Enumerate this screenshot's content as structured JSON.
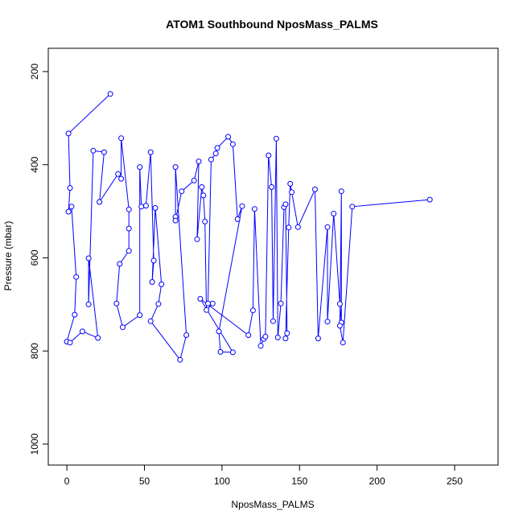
{
  "chart_data": {
    "type": "line",
    "title": "ATOM1 Southbound NposMass_PALMS",
    "xlabel": "NposMass_PALMS",
    "ylabel": "Pressure (mbar)",
    "xlim": [
      -12,
      278
    ],
    "ylim": [
      150,
      1045
    ],
    "y_reversed": true,
    "x_ticks": [
      0,
      50,
      100,
      150,
      200,
      250
    ],
    "y_ticks": [
      200,
      400,
      600,
      800,
      1000
    ],
    "grid": false,
    "legend": "none",
    "marker": "open-circle",
    "colors": {
      "series": "#0000ff",
      "axes": "#000000",
      "background": "#ffffff"
    },
    "series": [
      {
        "points": [
          [
            28,
            248
          ],
          [
            1,
            333
          ],
          [
            2,
            450
          ],
          [
            1,
            501
          ],
          [
            3,
            490
          ],
          [
            6,
            641
          ],
          [
            5,
            722
          ],
          [
            0,
            780
          ],
          [
            2,
            782
          ],
          [
            10,
            758
          ],
          [
            20,
            772
          ],
          [
            14,
            601
          ],
          [
            14,
            700
          ],
          [
            17,
            370
          ],
          [
            24,
            373
          ],
          [
            21,
            480
          ],
          [
            33,
            420
          ],
          [
            35,
            430
          ],
          [
            35,
            343
          ],
          [
            40,
            496
          ],
          [
            40,
            537
          ],
          [
            40,
            585
          ],
          [
            34,
            613
          ],
          [
            32,
            698
          ],
          [
            36,
            749
          ],
          [
            47,
            723
          ],
          [
            47,
            405
          ],
          [
            48,
            490
          ],
          [
            51,
            488
          ],
          [
            54,
            373
          ],
          [
            56,
            606
          ],
          [
            55,
            652
          ],
          [
            57,
            493
          ],
          [
            61,
            657
          ],
          [
            59,
            699
          ],
          [
            54,
            736
          ],
          [
            73,
            819
          ],
          [
            77,
            766
          ],
          [
            70,
            405
          ],
          [
            70,
            512
          ],
          [
            70,
            520
          ],
          [
            74,
            457
          ],
          [
            82,
            434
          ],
          [
            85,
            393
          ],
          [
            84,
            560
          ],
          [
            87,
            448
          ],
          [
            88,
            466
          ],
          [
            89,
            522
          ],
          [
            90,
            712
          ],
          [
            94,
            698
          ],
          [
            91,
            698
          ],
          [
            93,
            389
          ],
          [
            96,
            376
          ],
          [
            97,
            364
          ],
          [
            104,
            340
          ],
          [
            107,
            356
          ],
          [
            110,
            517
          ],
          [
            113,
            489
          ],
          [
            98,
            758
          ],
          [
            99,
            802
          ],
          [
            107,
            803
          ],
          [
            86,
            688
          ],
          [
            117,
            766
          ],
          [
            120,
            713
          ],
          [
            121,
            495
          ],
          [
            125,
            789
          ],
          [
            127,
            774
          ],
          [
            128,
            769
          ],
          [
            130,
            380
          ],
          [
            132,
            448
          ],
          [
            133,
            736
          ],
          [
            135,
            344
          ],
          [
            136,
            771
          ],
          [
            138,
            698
          ],
          [
            140,
            491
          ],
          [
            141,
            485
          ],
          [
            142,
            762
          ],
          [
            141,
            773
          ],
          [
            143,
            535
          ],
          [
            144,
            441
          ],
          [
            145,
            459
          ],
          [
            149,
            534
          ],
          [
            160,
            453
          ],
          [
            162,
            773
          ],
          [
            168,
            534
          ],
          [
            168,
            737
          ],
          [
            172,
            505
          ],
          [
            176,
            699
          ],
          [
            177,
            739
          ],
          [
            177,
            457
          ],
          [
            176,
            746
          ],
          [
            178,
            782
          ],
          [
            184,
            490
          ],
          [
            234,
            475
          ]
        ]
      }
    ]
  }
}
